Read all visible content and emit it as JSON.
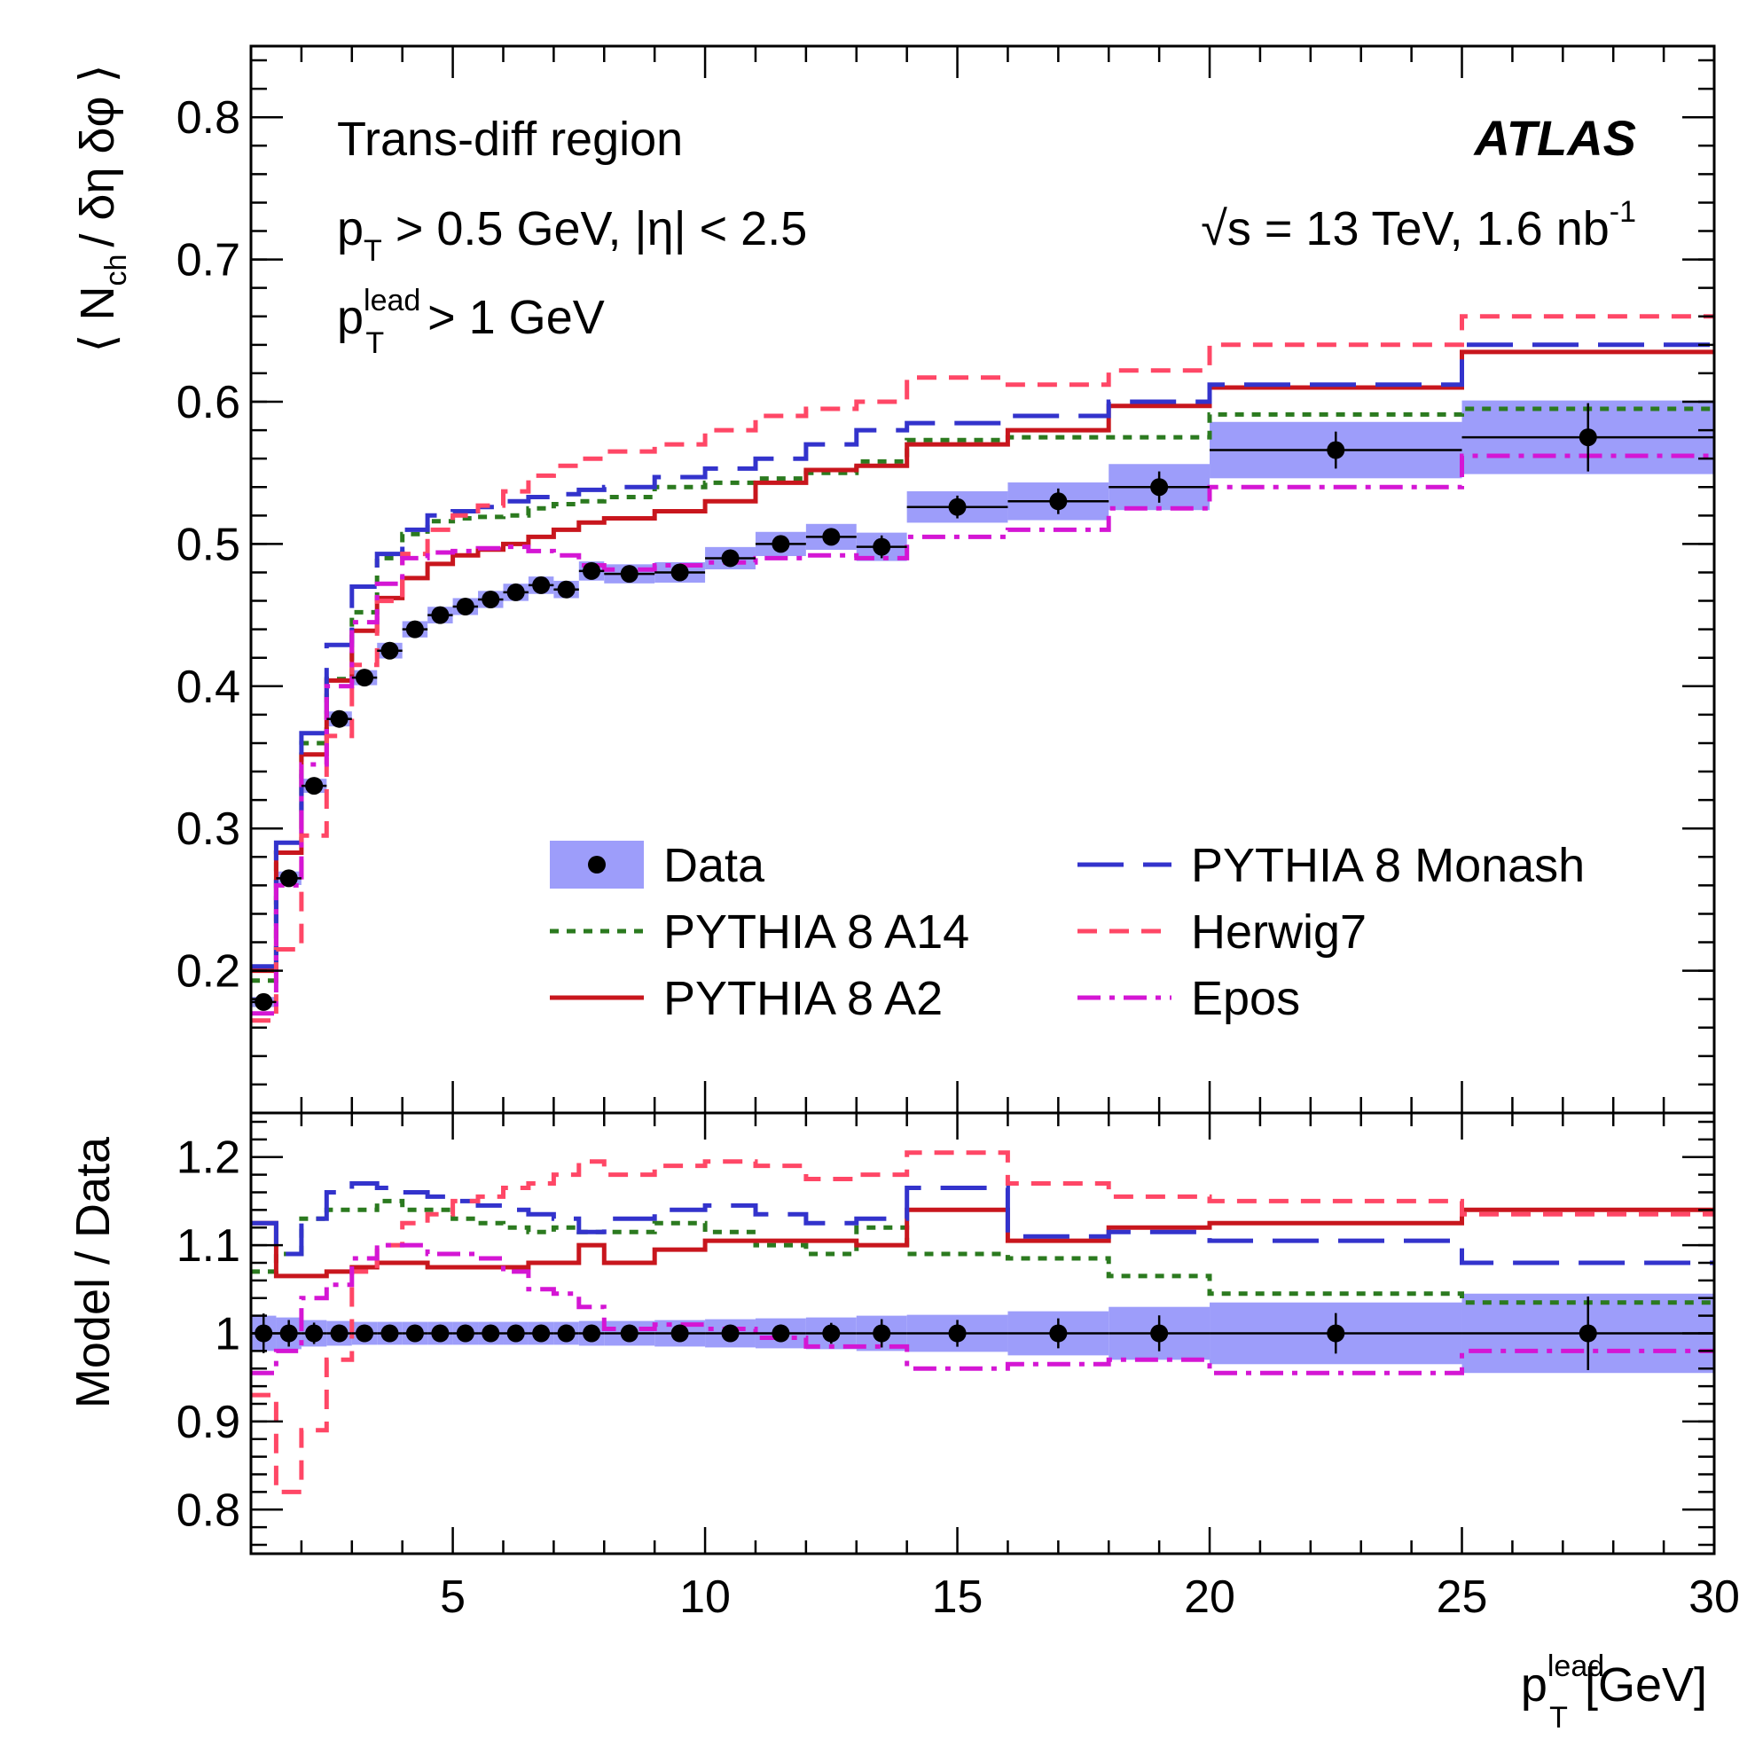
{
  "chart_data": {
    "type": "line",
    "top_panel": {
      "ylabel": {
        "open": "⟨ N",
        "sub": "ch",
        "rest": "/ δη δφ ⟩"
      },
      "ylim": [
        0.1,
        0.85
      ],
      "yticks": [
        0.2,
        0.3,
        0.4,
        0.5,
        0.6,
        0.7,
        0.8
      ],
      "ytick_labels": [
        "0.2",
        "0.3",
        "0.4",
        "0.5",
        "0.6",
        "0.7",
        "0.8"
      ]
    },
    "ratio_panel": {
      "ylabel": "Model / Data",
      "ylim": [
        0.75,
        1.25
      ],
      "yticks": [
        0.8,
        0.9,
        1.0,
        1.1,
        1.2
      ],
      "ytick_labels": [
        "0.8",
        "0.9",
        "1",
        "1.1",
        "1.2"
      ]
    },
    "xlim": [
      1,
      30
    ],
    "xticks": [
      5,
      10,
      15,
      20,
      25,
      30
    ],
    "xtick_labels": [
      "5",
      "10",
      "15",
      "20",
      "25",
      "30"
    ],
    "xlabel": {
      "main": "p",
      "sup": "lead",
      "sub": "T",
      "rest": " [GeV]"
    },
    "annotations": {
      "region": "Trans-diff region",
      "cut1": {
        "p": "p",
        "sub": "T",
        "rest": " > 0.5 GeV, |η| < 2.5"
      },
      "cut2": {
        "p": "p",
        "sup": "lead",
        "sub": "T",
        "rest": " > 1 GeV"
      },
      "experiment": "ATLAS",
      "energy": {
        "text": "√s = 13 TeV, 1.6 nb",
        "sup": "-1"
      }
    },
    "bin_edges": [
      1,
      1.5,
      2,
      2.5,
      3,
      3.5,
      4,
      4.5,
      5,
      5.5,
      6,
      6.5,
      7,
      7.5,
      8,
      9,
      10,
      11,
      12,
      13,
      14,
      16,
      18,
      20,
      25,
      30
    ],
    "data": {
      "name": "Data",
      "values": [
        0.178,
        0.265,
        0.33,
        0.377,
        0.406,
        0.425,
        0.44,
        0.45,
        0.456,
        0.461,
        0.466,
        0.471,
        0.468,
        0.481,
        0.479,
        0.48,
        0.49,
        0.5,
        0.505,
        0.498,
        0.526,
        0.53,
        0.54,
        0.566,
        0.575
      ],
      "stat_err": [
        0.004,
        0.004,
        0.004,
        0.003,
        0.003,
        0.003,
        0.003,
        0.003,
        0.003,
        0.003,
        0.003,
        0.003,
        0.003,
        0.003,
        0.003,
        0.003,
        0.004,
        0.005,
        0.006,
        0.008,
        0.008,
        0.009,
        0.011,
        0.013,
        0.024
      ],
      "band_rel": [
        0.02,
        0.018,
        0.015,
        0.014,
        0.013,
        0.013,
        0.013,
        0.013,
        0.013,
        0.013,
        0.013,
        0.013,
        0.013,
        0.014,
        0.014,
        0.015,
        0.016,
        0.017,
        0.018,
        0.02,
        0.021,
        0.025,
        0.03,
        0.035,
        0.045
      ],
      "color": "#9d9dfa"
    },
    "series": [
      {
        "name": "PYTHIA 8 A14",
        "style": "dotted",
        "color": "#2b7a1f",
        "values": [
          0.193,
          0.283,
          0.36,
          0.405,
          0.452,
          0.49,
          0.507,
          0.516,
          0.518,
          0.519,
          0.52,
          0.525,
          0.528,
          0.53,
          0.533,
          0.54,
          0.543,
          0.546,
          0.55,
          0.558,
          0.573,
          0.575,
          0.575,
          0.591,
          0.595
        ],
        "ratio": [
          1.07,
          1.09,
          1.13,
          1.14,
          1.14,
          1.15,
          1.14,
          1.14,
          1.13,
          1.125,
          1.12,
          1.115,
          1.12,
          1.115,
          1.115,
          1.125,
          1.115,
          1.1,
          1.09,
          1.12,
          1.09,
          1.085,
          1.065,
          1.045,
          1.035
        ]
      },
      {
        "name": "PYTHIA 8 A2",
        "style": "solid",
        "color": "#c8161d",
        "values": [
          0.2,
          0.283,
          0.352,
          0.404,
          0.439,
          0.462,
          0.476,
          0.486,
          0.492,
          0.496,
          0.5,
          0.505,
          0.51,
          0.515,
          0.518,
          0.523,
          0.53,
          0.543,
          0.552,
          0.555,
          0.57,
          0.58,
          0.597,
          0.61,
          0.635
        ],
        "ratio": [
          1.125,
          1.065,
          1.065,
          1.07,
          1.075,
          1.08,
          1.08,
          1.075,
          1.075,
          1.075,
          1.075,
          1.08,
          1.08,
          1.1,
          1.08,
          1.095,
          1.105,
          1.105,
          1.105,
          1.1,
          1.14,
          1.105,
          1.12,
          1.125,
          1.14
        ]
      },
      {
        "name": "PYTHIA 8 Monash",
        "style": "longdash",
        "color": "#3333cc",
        "values": [
          0.203,
          0.29,
          0.367,
          0.429,
          0.47,
          0.493,
          0.51,
          0.52,
          0.523,
          0.526,
          0.53,
          0.533,
          0.535,
          0.538,
          0.54,
          0.547,
          0.553,
          0.56,
          0.57,
          0.58,
          0.585,
          0.59,
          0.6,
          0.612,
          0.64
        ],
        "ratio": [
          1.125,
          1.09,
          1.13,
          1.16,
          1.17,
          1.165,
          1.16,
          1.155,
          1.15,
          1.145,
          1.14,
          1.135,
          1.13,
          1.115,
          1.13,
          1.14,
          1.145,
          1.135,
          1.125,
          1.13,
          1.165,
          1.11,
          1.115,
          1.105,
          1.08
        ]
      },
      {
        "name": "Herwig7",
        "style": "dashed",
        "color": "#ff4766",
        "values": [
          0.165,
          0.215,
          0.295,
          0.365,
          0.415,
          0.46,
          0.493,
          0.51,
          0.52,
          0.527,
          0.537,
          0.548,
          0.555,
          0.56,
          0.565,
          0.57,
          0.58,
          0.59,
          0.595,
          0.6,
          0.617,
          0.612,
          0.622,
          0.64,
          0.66
        ],
        "ratio": [
          0.93,
          0.82,
          0.89,
          0.97,
          1.07,
          1.1,
          1.125,
          1.135,
          1.15,
          1.155,
          1.165,
          1.17,
          1.18,
          1.195,
          1.18,
          1.19,
          1.195,
          1.19,
          1.175,
          1.18,
          1.205,
          1.17,
          1.155,
          1.15,
          1.135
        ]
      },
      {
        "name": "Epos",
        "style": "dashdot",
        "color": "#d416d4",
        "values": [
          0.17,
          0.26,
          0.345,
          0.4,
          0.445,
          0.472,
          0.49,
          0.494,
          0.495,
          0.497,
          0.498,
          0.495,
          0.492,
          0.485,
          0.482,
          0.485,
          0.487,
          0.49,
          0.492,
          0.49,
          0.505,
          0.51,
          0.525,
          0.54,
          0.562
        ],
        "ratio": [
          0.955,
          0.98,
          1.04,
          1.055,
          1.085,
          1.1,
          1.1,
          1.09,
          1.09,
          1.085,
          1.07,
          1.05,
          1.045,
          1.03,
          1.005,
          1.01,
          1.005,
          0.995,
          0.985,
          0.985,
          0.96,
          0.965,
          0.97,
          0.955,
          0.98
        ]
      }
    ]
  }
}
